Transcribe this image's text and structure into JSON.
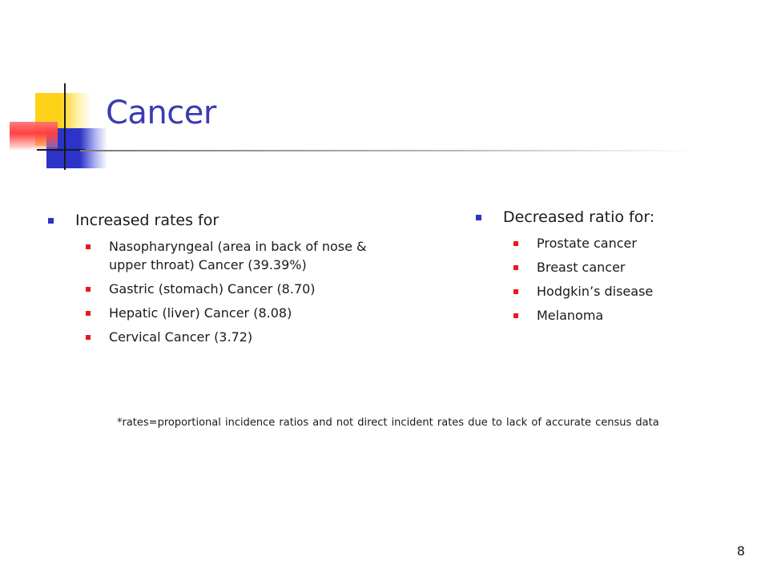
{
  "slide": {
    "title": "Cancer",
    "left": {
      "heading": "Increased rates for",
      "items": [
        "Nasopharyngeal (area in back of nose &\nupper throat) Cancer (39.39%)",
        "Gastric (stomach) Cancer (8.70)",
        "Hepatic (liver) Cancer (8.08)",
        "Cervical Cancer (3.72)"
      ]
    },
    "right": {
      "heading": "Decreased ratio for:",
      "items": [
        "Prostate cancer",
        "Breast cancer",
        "Hodgkin’s disease",
        "Melanoma"
      ]
    },
    "footnote": "*rates=proportional incidence ratios and not direct incident rates due to lack of accurate census data",
    "page_number": "8"
  },
  "colors": {
    "title": "#3b3bb1",
    "bullet_level1": "#2c33c9",
    "bullet_level2": "#e31b1b",
    "deco_yellow": "#ffd21a",
    "deco_blue": "#2c33c9",
    "deco_red": "#ff4040"
  }
}
